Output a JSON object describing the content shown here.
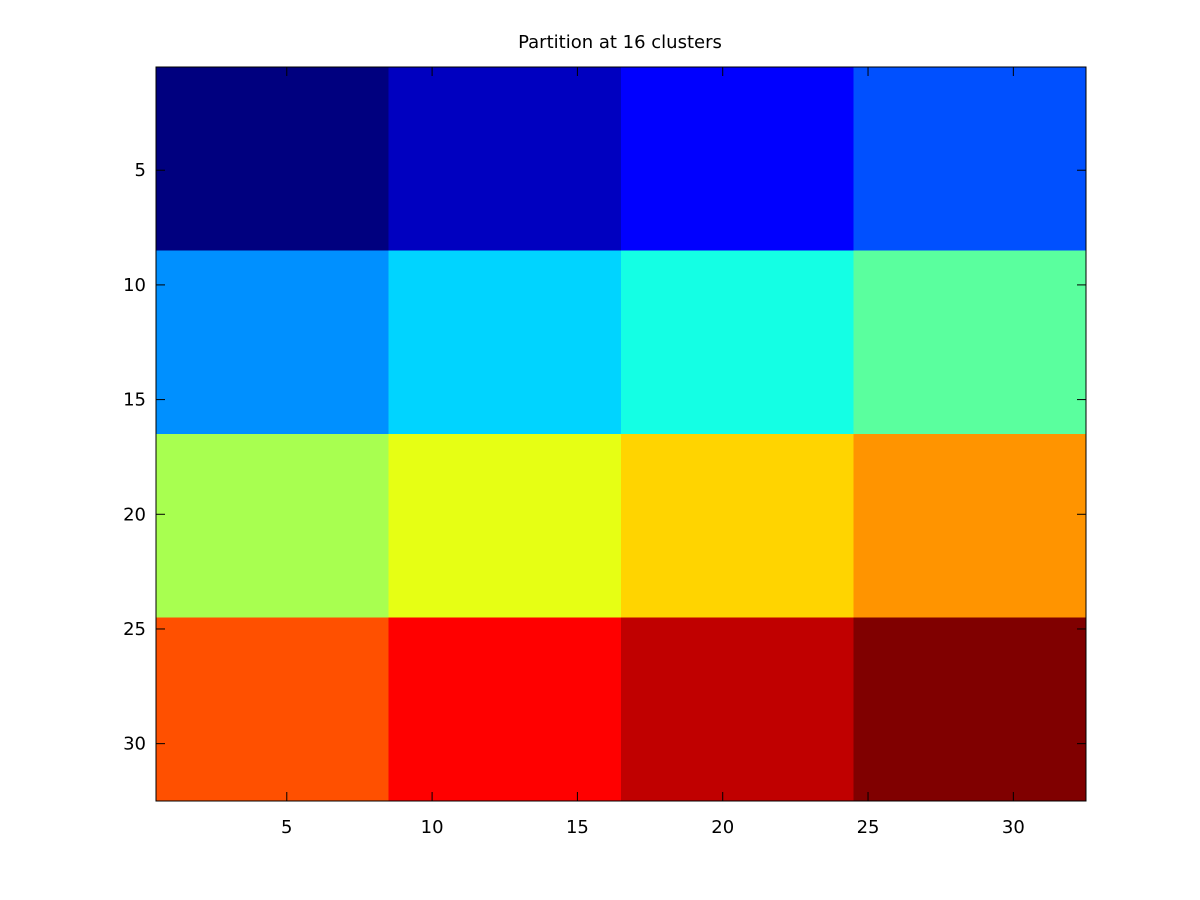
{
  "chart_data": {
    "type": "heatmap",
    "title": "Partition at 16 clusters",
    "xlabel": "",
    "ylabel": "",
    "xlim": [
      0.5,
      32.5
    ],
    "ylim": [
      0.5,
      32.5
    ],
    "y_reversed": true,
    "grid": false,
    "x_ticks": [
      5,
      10,
      15,
      20,
      25,
      30
    ],
    "y_ticks": [
      5,
      10,
      15,
      20,
      25,
      30
    ],
    "colormap": "jet",
    "color_range": [
      1,
      16
    ],
    "block_size": 8,
    "matrix": [
      [
        1,
        2,
        3,
        4
      ],
      [
        5,
        6,
        7,
        8
      ],
      [
        9,
        10,
        11,
        12
      ],
      [
        13,
        14,
        15,
        16
      ]
    ],
    "block_colors": [
      [
        "#00007f",
        "#0000c0",
        "#0000ff",
        "#0050ff"
      ],
      [
        "#0090ff",
        "#00d4ff",
        "#14ffe4",
        "#5aff9e"
      ],
      [
        "#a8ff50",
        "#e6ff14",
        "#ffd400",
        "#ff9400"
      ],
      [
        "#ff5000",
        "#ff0000",
        "#c00000",
        "#800000"
      ]
    ]
  }
}
